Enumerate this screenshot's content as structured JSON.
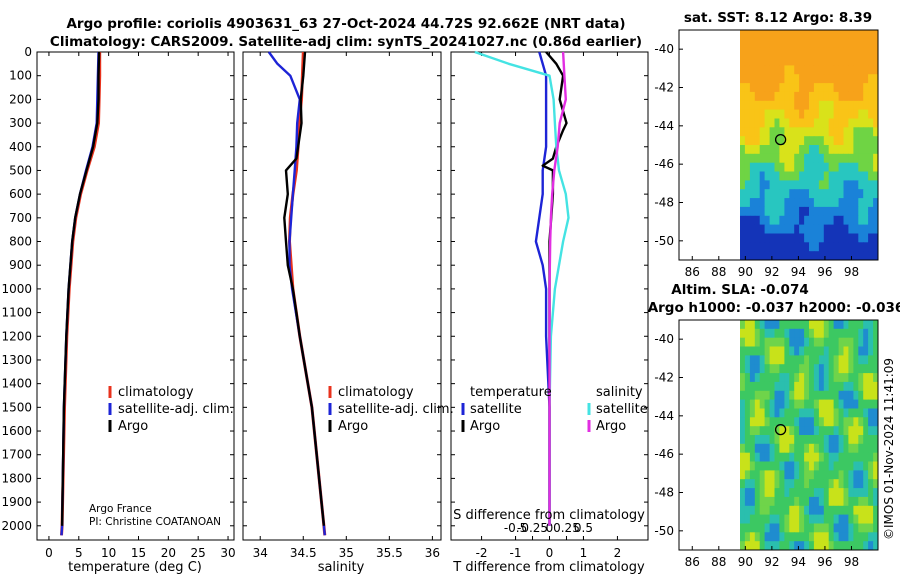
{
  "header": {
    "title_line1": "Argo profile: coriolis 4903631_63 27-Oct-2024 44.72S 92.662E (NRT data)",
    "title_line2": "Climatology: CARS2009. Satellite-adj clim: synTS_20241027.nc (0.86d earlier)"
  },
  "colors": {
    "climatology": "#e8321c",
    "satellite_adj": "#1d24d6",
    "argo": "#000000",
    "sal_satellite": "#44e3e3",
    "sal_argo": "#e22ee2"
  },
  "chart_data": [
    {
      "id": "temperature",
      "type": "line",
      "xlabel": "temperature (deg C)",
      "ylabel": "depth",
      "xlim": [
        -2,
        31
      ],
      "ylim": [
        2060,
        0
      ],
      "xticks": [
        0,
        5,
        10,
        15,
        20,
        25,
        30
      ],
      "yticks": [
        0,
        100,
        200,
        300,
        400,
        500,
        600,
        700,
        800,
        900,
        1000,
        1100,
        1200,
        1300,
        1400,
        1500,
        1600,
        1700,
        1800,
        1900,
        2000
      ],
      "legend": [
        "climatology",
        "satellite-adj. clim.",
        "Argo"
      ],
      "credit_line1": "Argo France",
      "credit_line2": "PI: Christine COATANOAN",
      "series": [
        {
          "name": "climatology",
          "depth": [
            0,
            100,
            200,
            300,
            400,
            500,
            600,
            700,
            800,
            1000,
            1200,
            1500,
            2000,
            2040
          ],
          "values": [
            8.5,
            8.5,
            8.4,
            8.3,
            7.6,
            6.4,
            5.3,
            4.5,
            4.0,
            3.4,
            3.0,
            2.6,
            2.2,
            2.1
          ]
        },
        {
          "name": "satellite-adj. clim.",
          "depth": [
            0,
            100,
            200,
            300,
            400,
            500,
            600,
            700,
            800,
            1000,
            1200,
            1500,
            2000,
            2040
          ],
          "values": [
            8.3,
            8.2,
            8.1,
            8.0,
            7.3,
            6.2,
            5.2,
            4.4,
            3.9,
            3.3,
            2.9,
            2.5,
            2.2,
            2.1
          ]
        },
        {
          "name": "Argo",
          "depth": [
            0,
            100,
            200,
            300,
            400,
            500,
            600,
            700,
            800,
            1000,
            1200,
            1500,
            2000
          ],
          "values": [
            8.4,
            8.3,
            8.3,
            8.1,
            7.4,
            6.3,
            5.2,
            4.4,
            3.9,
            3.3,
            2.9,
            2.5,
            2.2
          ]
        }
      ]
    },
    {
      "id": "salinity",
      "type": "line",
      "xlabel": "salinity",
      "xlim": [
        33.8,
        36.1
      ],
      "ylim": [
        2060,
        0
      ],
      "xticks": [
        34,
        34.5,
        35,
        35.5,
        36
      ],
      "legend": [
        "climatology",
        "satellite-adj. clim.",
        "Argo"
      ],
      "series": [
        {
          "name": "climatology",
          "depth": [
            0,
            100,
            200,
            300,
            400,
            500,
            600,
            700,
            800,
            1000,
            1200,
            1500,
            2000,
            2040
          ],
          "values": [
            34.5,
            34.49,
            34.48,
            34.45,
            34.44,
            34.42,
            34.38,
            34.35,
            34.34,
            34.38,
            34.46,
            34.6,
            34.74,
            34.75
          ]
        },
        {
          "name": "satellite-adj. clim.",
          "depth": [
            0,
            50,
            100,
            200,
            300,
            400,
            500,
            600,
            700,
            800,
            900,
            1000,
            1200,
            1500,
            2000,
            2040
          ],
          "values": [
            34.1,
            34.2,
            34.35,
            34.46,
            34.43,
            34.42,
            34.4,
            34.38,
            34.36,
            34.34,
            34.34,
            34.37,
            34.46,
            34.6,
            34.74,
            34.75
          ]
        },
        {
          "name": "Argo",
          "depth": [
            0,
            100,
            200,
            300,
            400,
            450,
            500,
            600,
            700,
            800,
            900,
            1000,
            1100,
            1200,
            1500,
            2000
          ],
          "values": [
            34.52,
            34.5,
            34.47,
            34.48,
            34.44,
            34.42,
            34.3,
            34.32,
            34.28,
            34.3,
            34.32,
            34.38,
            34.42,
            34.46,
            34.6,
            34.74
          ]
        }
      ]
    },
    {
      "id": "difference",
      "type": "line",
      "xlabel": "T difference from climatology",
      "xlabel2": "S difference from climatology",
      "xlim": [
        -2.9,
        2.9
      ],
      "ylim": [
        2060,
        0
      ],
      "xticks": [
        -2,
        -1,
        0,
        1,
        2
      ],
      "sticks_labels": [
        "-0.5",
        "-0.25",
        "0",
        "0.25",
        "0.5"
      ],
      "sticks_values": [
        -0.5,
        -0.25,
        0,
        0.25,
        0.5
      ],
      "legend_temperature_title": "temperature",
      "legend_salinity_title": "salinity",
      "legend_temperature": [
        "satellite",
        "Argo"
      ],
      "legend_salinity": [
        "satellite",
        "Argo"
      ],
      "series": [
        {
          "name": "temperature satellite",
          "depth": [
            0,
            50,
            100,
            200,
            300,
            400,
            500,
            600,
            700,
            800,
            900,
            1000,
            1200,
            1500,
            2000
          ],
          "values": [
            -0.3,
            -0.2,
            -0.1,
            -0.1,
            -0.1,
            -0.1,
            -0.2,
            -0.2,
            -0.3,
            -0.4,
            -0.2,
            -0.1,
            -0.1,
            0,
            0
          ]
        },
        {
          "name": "temperature Argo",
          "depth": [
            0,
            50,
            100,
            200,
            300,
            330,
            400,
            450,
            480,
            500,
            600,
            700,
            800,
            1000,
            1200,
            1500,
            2000
          ],
          "values": [
            -0.1,
            0.2,
            0.4,
            0.3,
            0.5,
            0.4,
            0.2,
            0.1,
            -0.2,
            0.1,
            0.1,
            0.05,
            0,
            0,
            0,
            0,
            0
          ]
        },
        {
          "name": "salinity satellite",
          "depth": [
            0,
            50,
            100,
            200,
            300,
            400,
            500,
            600,
            700,
            800,
            1000,
            1200,
            1500,
            2000
          ],
          "values": [
            -1.1,
            -0.6,
            0,
            0.06,
            0.08,
            0.1,
            0.14,
            0.24,
            0.28,
            0.2,
            0.08,
            0.02,
            0,
            0
          ]
        },
        {
          "name": "salinity Argo",
          "depth": [
            0,
            100,
            200,
            300,
            400,
            500,
            600,
            700,
            800,
            1000,
            1200,
            1500,
            2000
          ],
          "values": [
            0.2,
            0.22,
            0.24,
            0.15,
            0.12,
            0.07,
            0.04,
            0.02,
            0.01,
            0,
            0,
            0,
            0
          ]
        }
      ]
    }
  ],
  "maps": {
    "sst": {
      "title": "sat. SST: 8.12 Argo: 8.39",
      "yticks": [
        "-40",
        "-42",
        "-44",
        "-46",
        "-48",
        "-50"
      ],
      "xticks": [
        "86",
        "88",
        "90",
        "92",
        "94",
        "96",
        "98"
      ]
    },
    "sla": {
      "title_line1": "Altim. SLA: -0.074",
      "title_line2": "Argo h1000: -0.037 h2000: -0.036",
      "yticks": [
        "-40",
        "-42",
        "-44",
        "-46",
        "-48",
        "-50"
      ],
      "xticks": [
        "86",
        "88",
        "90",
        "92",
        "94",
        "96",
        "98"
      ]
    },
    "float_position": {
      "lon": 92.662,
      "lat": -44.72
    }
  },
  "watermark": "©IMOS 01-Nov-2024 11:41:09"
}
